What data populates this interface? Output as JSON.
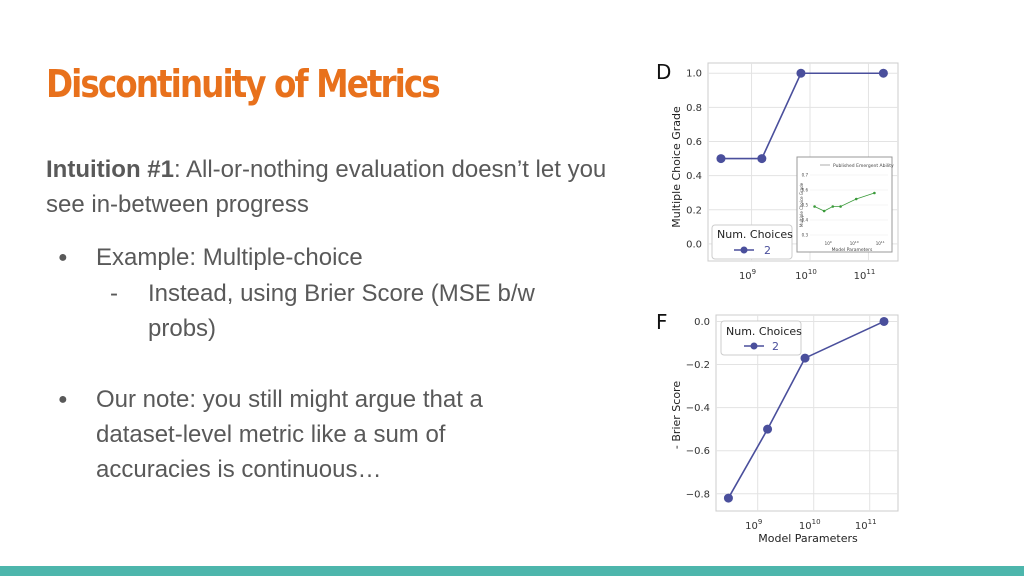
{
  "slide": {
    "title": "Discontinuity of Metrics",
    "intuition_label": "Intuition #1",
    "intuition_text": ": All-or-nothing evaluation doesn’t let you see in-between progress",
    "bullets": [
      {
        "marker": "●",
        "text": "Example: Multiple-choice"
      },
      {
        "marker": "●",
        "text": "Our note: you still might argue that a dataset-level metric like a sum of accuracies is continuous…"
      }
    ],
    "sub_bullet": {
      "marker": "-",
      "text": "Instead, using Brier Score (MSE b/w probs)"
    }
  },
  "colors": {
    "title": "#e8711c",
    "series": "#4a4f9c",
    "inset_series": "#3a9a3a",
    "bar": "#4db6ac"
  },
  "chart_data": [
    {
      "type": "line",
      "panel_label": "D",
      "ylabel": "Multiple Choice Grade",
      "xlabel": "",
      "x_scale": "log",
      "x": [
        300000000.0,
        1500000000.0,
        7000000000.0,
        180000000000.0
      ],
      "series": [
        {
          "name": "2",
          "values": [
            0.5,
            0.5,
            1.0,
            1.0
          ]
        }
      ],
      "legend_title": "Num. Choices",
      "legend_placement": "bottom-left",
      "yticks": [
        "0.0",
        "0.2",
        "0.4",
        "0.6",
        "0.8",
        "1.0"
      ],
      "xticks": [
        {
          "base": "10",
          "exp": "9"
        },
        {
          "base": "10",
          "exp": "10"
        },
        {
          "base": "10",
          "exp": "11"
        }
      ],
      "ylim": [
        0,
        1.0
      ],
      "grid": true,
      "inset": {
        "type": "line",
        "legend_text": "Published Emergent Ability",
        "ylabel": "Multiple Choice Grade",
        "xlabel": "Model Parameters",
        "yticks": [
          "0.3",
          "0.4",
          "0.5",
          "0.6",
          "0.7"
        ],
        "xticks": [
          {
            "base": "10",
            "exp": "9"
          },
          {
            "base": "10",
            "exp": "10"
          },
          {
            "base": "10",
            "exp": "11"
          }
        ],
        "x": [
          300000000.0,
          700000000.0,
          1500000000.0,
          3000000000.0,
          12000000000.0,
          60000000000.0
        ],
        "values": [
          0.49,
          0.46,
          0.49,
          0.49,
          0.54,
          0.58
        ]
      }
    },
    {
      "type": "line",
      "panel_label": "F",
      "ylabel": "- Brier Score",
      "xlabel": "Model Parameters",
      "x_scale": "log",
      "x": [
        300000000.0,
        1500000000.0,
        7000000000.0,
        180000000000.0
      ],
      "series": [
        {
          "name": "2",
          "values": [
            -0.82,
            -0.5,
            -0.17,
            0.0
          ]
        }
      ],
      "legend_title": "Num. Choices",
      "legend_placement": "top-left",
      "yticks": [
        "−0.8",
        "−0.6",
        "−0.4",
        "−0.2",
        "0.0"
      ],
      "xticks": [
        {
          "base": "10",
          "exp": "9"
        },
        {
          "base": "10",
          "exp": "10"
        },
        {
          "base": "10",
          "exp": "11"
        }
      ],
      "ylim": [
        -0.85,
        0.02
      ],
      "grid": true
    }
  ]
}
